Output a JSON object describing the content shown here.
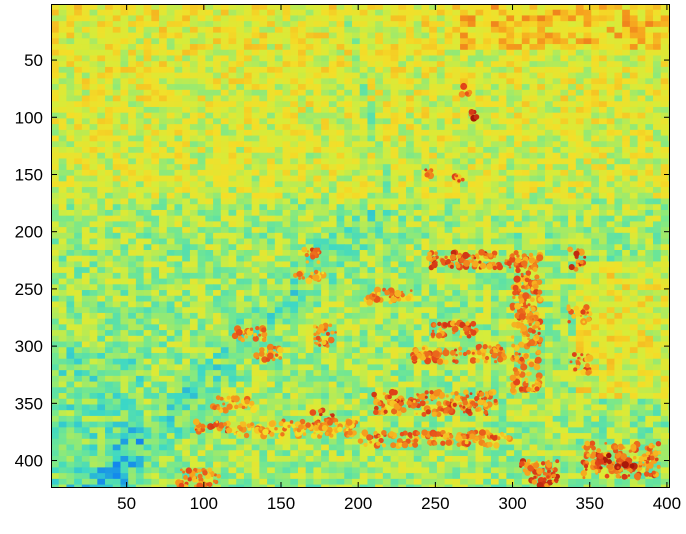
{
  "chart_data": {
    "type": "heatmap",
    "title": "",
    "xlabel": "",
    "ylabel": "",
    "xlim": [
      1,
      402
    ],
    "ylim": [
      1,
      424
    ],
    "y_reversed": true,
    "x_ticks": [
      50,
      100,
      150,
      200,
      250,
      300,
      350,
      400
    ],
    "y_ticks": [
      50,
      100,
      150,
      200,
      250,
      300,
      350,
      400
    ],
    "x_tick_labels": [
      "50",
      "100",
      "150",
      "200",
      "250",
      "300",
      "350",
      "400"
    ],
    "y_tick_labels": [
      "50",
      "100",
      "150",
      "200",
      "250",
      "300",
      "350",
      "400"
    ],
    "colormap": "jet",
    "colors": {
      "cyan": "#3ad7c8",
      "green": "#86e67c",
      "yellow": "#f0e63a",
      "orange": "#f6a31e",
      "red": "#e4461a",
      "darkred": "#a41408"
    },
    "regions": [
      {
        "name": "upper-left-warm-field",
        "x0": 1,
        "x1": 402,
        "y0": 1,
        "y1": 175,
        "level": 0.62
      },
      {
        "name": "central-cool-field",
        "x0": 1,
        "x1": 402,
        "y0": 175,
        "y1": 424,
        "level": 0.44
      },
      {
        "name": "diagonal-cool-road",
        "x0": 30,
        "x1": 210,
        "y0": 185,
        "y1": 424,
        "level": 0.3
      },
      {
        "name": "upper-right-warm-strip",
        "x0": 260,
        "x1": 402,
        "y0": 1,
        "y1": 40,
        "level": 0.7
      },
      {
        "name": "right-warm-block",
        "x0": 340,
        "x1": 402,
        "y0": 225,
        "y1": 345,
        "level": 0.7
      }
    ],
    "lines": [
      {
        "name": "vertical-cool-streak",
        "points": [
          [
            190,
            1
          ],
          [
            205,
            80
          ],
          [
            220,
            165
          ]
        ],
        "level": 0.25
      }
    ],
    "hotspots": [
      {
        "x": 245,
        "y": 218,
        "w": 70,
        "h": 14,
        "level": 0.95
      },
      {
        "x": 300,
        "y": 220,
        "w": 18,
        "h": 120,
        "level": 0.9
      },
      {
        "x": 337,
        "y": 215,
        "w": 10,
        "h": 18,
        "level": 0.95
      },
      {
        "x": 336,
        "y": 265,
        "w": 14,
        "h": 14,
        "level": 0.9
      },
      {
        "x": 337,
        "y": 306,
        "w": 14,
        "h": 18,
        "level": 0.9
      },
      {
        "x": 248,
        "y": 280,
        "w": 30,
        "h": 12,
        "level": 0.92
      },
      {
        "x": 235,
        "y": 300,
        "w": 60,
        "h": 14,
        "level": 0.9
      },
      {
        "x": 210,
        "y": 340,
        "w": 80,
        "h": 20,
        "level": 0.92
      },
      {
        "x": 200,
        "y": 375,
        "w": 100,
        "h": 12,
        "level": 0.9
      },
      {
        "x": 172,
        "y": 280,
        "w": 14,
        "h": 20,
        "level": 0.9
      },
      {
        "x": 170,
        "y": 355,
        "w": 14,
        "h": 14,
        "level": 0.95
      },
      {
        "x": 120,
        "y": 365,
        "w": 80,
        "h": 14,
        "level": 0.85
      },
      {
        "x": 105,
        "y": 345,
        "w": 28,
        "h": 12,
        "level": 0.85
      },
      {
        "x": 120,
        "y": 283,
        "w": 20,
        "h": 12,
        "level": 0.88
      },
      {
        "x": 134,
        "y": 300,
        "w": 16,
        "h": 12,
        "level": 0.9
      },
      {
        "x": 95,
        "y": 365,
        "w": 22,
        "h": 10,
        "level": 0.92
      },
      {
        "x": 82,
        "y": 408,
        "w": 28,
        "h": 16,
        "level": 0.9
      },
      {
        "x": 305,
        "y": 400,
        "w": 25,
        "h": 24,
        "level": 0.95
      },
      {
        "x": 345,
        "y": 385,
        "w": 50,
        "h": 30,
        "level": 0.92
      },
      {
        "x": 355,
        "y": 395,
        "w": 24,
        "h": 12,
        "level": 1.0
      },
      {
        "x": 165,
        "y": 215,
        "w": 10,
        "h": 14,
        "level": 0.92
      },
      {
        "x": 267,
        "y": 72,
        "w": 6,
        "h": 8,
        "level": 1.0
      },
      {
        "x": 272,
        "y": 95,
        "w": 5,
        "h": 6,
        "level": 1.0
      },
      {
        "x": 243,
        "y": 146,
        "w": 6,
        "h": 5,
        "level": 0.95
      },
      {
        "x": 262,
        "y": 150,
        "w": 6,
        "h": 6,
        "level": 0.9
      },
      {
        "x": 205,
        "y": 250,
        "w": 30,
        "h": 12,
        "level": 0.88
      },
      {
        "x": 158,
        "y": 235,
        "w": 20,
        "h": 8,
        "level": 0.85
      }
    ]
  }
}
